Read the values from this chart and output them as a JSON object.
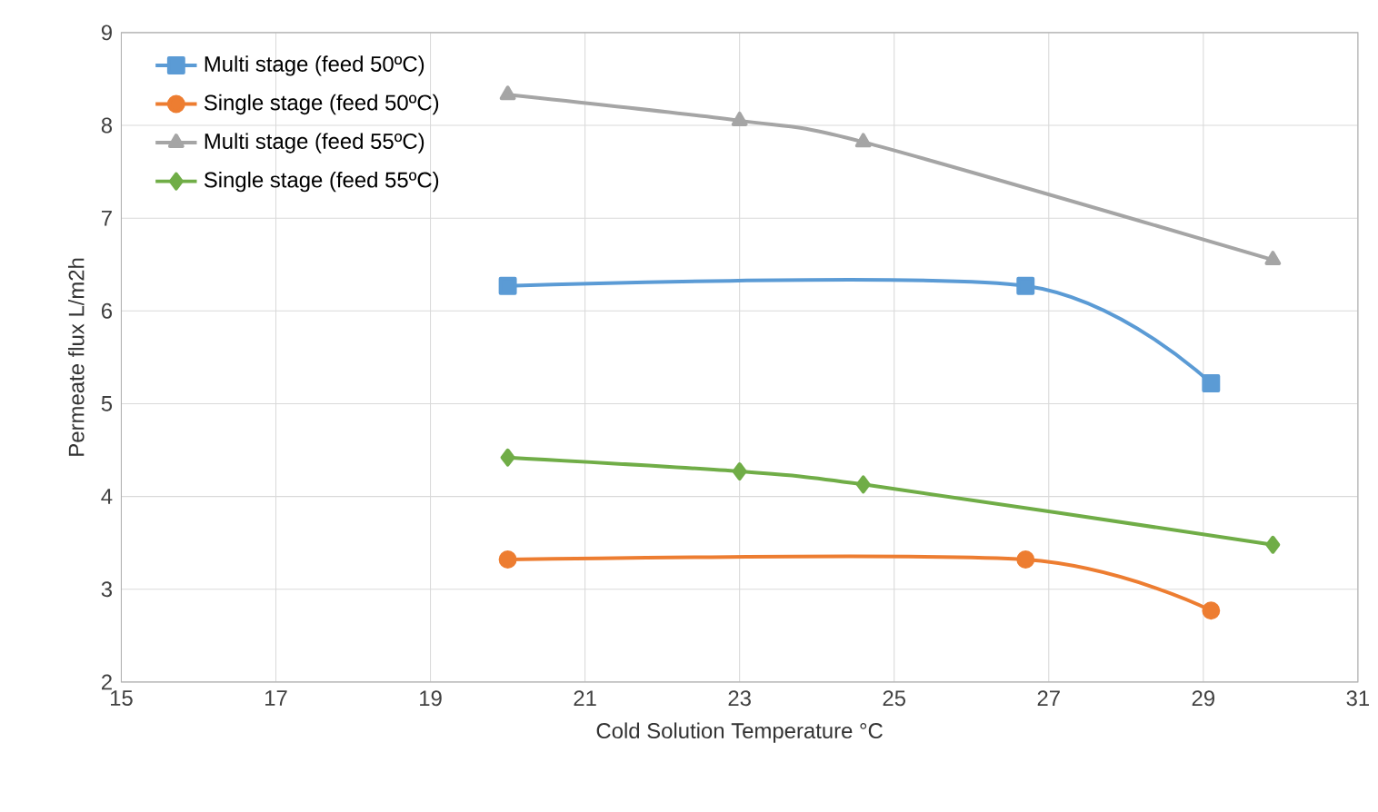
{
  "chart_data": {
    "type": "line",
    "xlabel": "Cold Solution Temperature °C",
    "ylabel": "Permeate flux L/m2h",
    "xlim": [
      15,
      31
    ],
    "xticks": [
      15,
      17,
      19,
      21,
      23,
      25,
      27,
      29,
      31
    ],
    "ylim": [
      2,
      9
    ],
    "yticks": [
      2,
      3,
      4,
      5,
      6,
      7,
      8,
      9
    ],
    "grid": true,
    "legend": "top left",
    "series": [
      {
        "name": "Multi stage (feed 50ºC)",
        "color": "#5b9bd5",
        "marker": "square",
        "x": [
          20,
          26.7,
          29.1
        ],
        "values": [
          6.27,
          6.27,
          5.22
        ]
      },
      {
        "name": "Single stage (feed 50ºC)",
        "color": "#ed7d31",
        "marker": "circle",
        "x": [
          20,
          26.7,
          29.1
        ],
        "values": [
          3.32,
          3.32,
          2.77
        ]
      },
      {
        "name": "Multi stage (feed 55ºC)",
        "color": "#a5a5a5",
        "marker": "triangle",
        "x": [
          20,
          23,
          24.6,
          29.9
        ],
        "values": [
          8.33,
          8.05,
          7.82,
          6.55
        ]
      },
      {
        "name": "Single stage (feed 55ºC)",
        "color": "#70ad47",
        "marker": "diamond",
        "x": [
          20,
          23,
          24.6,
          29.9
        ],
        "values": [
          4.42,
          4.27,
          4.13,
          3.48
        ]
      }
    ]
  }
}
